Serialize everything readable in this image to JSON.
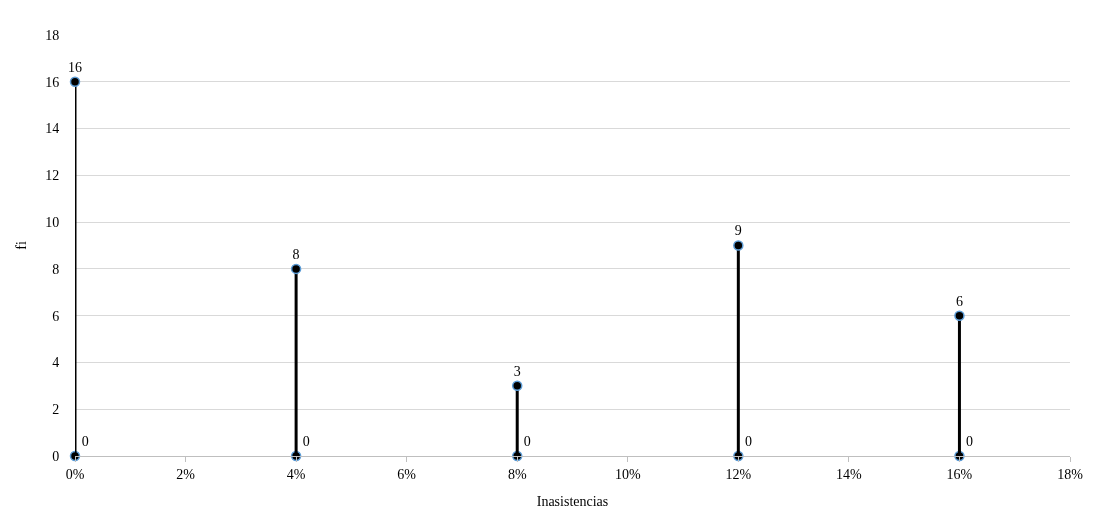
{
  "chart_data": {
    "type": "lollipop",
    "xlabel": "Inasistencias",
    "ylabel": "fi",
    "x": [
      0,
      4,
      8,
      12,
      16
    ],
    "series": [
      {
        "type": "scatter",
        "color": "#000000",
        "values": [
          0,
          0,
          0,
          0,
          0
        ]
      },
      {
        "color": "#000000",
        "values": [
          16,
          8,
          3,
          9,
          6
        ]
      }
    ],
    "xlim": [
      0,
      18
    ],
    "xticks": [
      {
        "value": 0,
        "label": "0%"
      },
      {
        "value": 2,
        "label": "2%"
      },
      {
        "value": 4,
        "label": "4%"
      },
      {
        "value": 6,
        "label": "6%"
      },
      {
        "value": 8,
        "label": "8%"
      },
      {
        "value": 10,
        "label": "10%"
      },
      {
        "value": 12,
        "label": "12%"
      },
      {
        "value": 14,
        "label": "14%"
      },
      {
        "value": 16,
        "label": "16%"
      },
      {
        "value": 18,
        "label": "18%"
      }
    ],
    "ylim": [
      0,
      18
    ],
    "yticks": [
      0,
      2,
      4,
      6,
      8,
      10,
      12,
      14,
      16,
      18
    ],
    "grid": "y",
    "marker": "circle",
    "data_labels": true
  }
}
